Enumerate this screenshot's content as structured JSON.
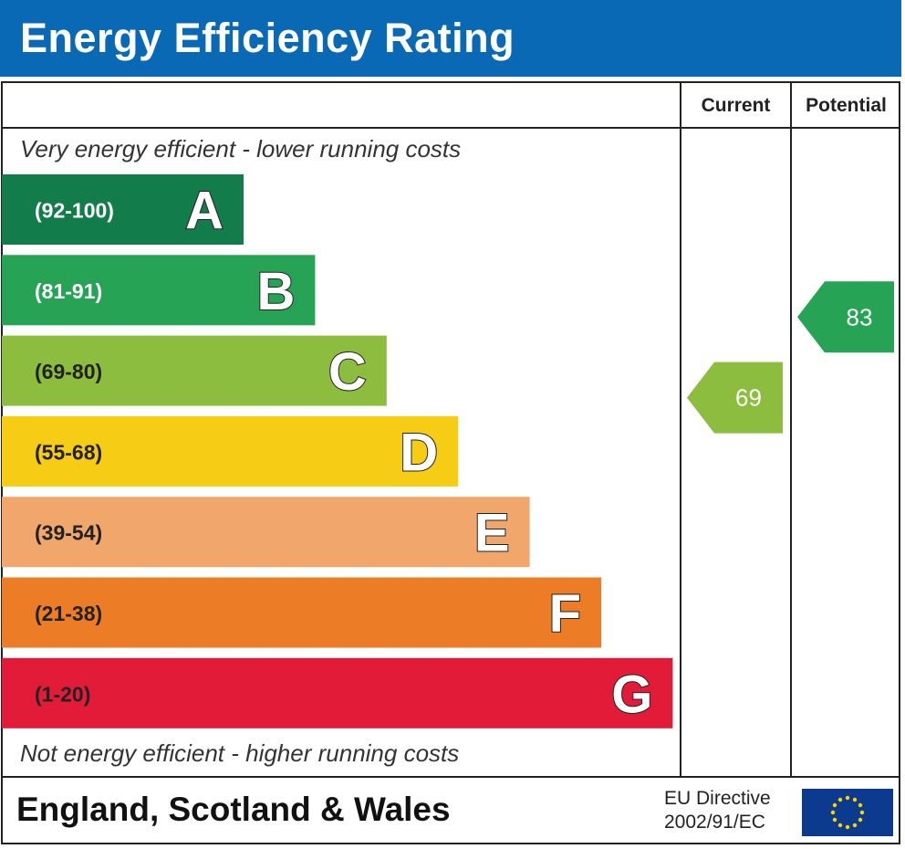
{
  "header": {
    "title": "Energy Efficiency Rating"
  },
  "columns": {
    "current": "Current",
    "potential": "Potential"
  },
  "notes": {
    "top": "Very energy efficient - lower running costs",
    "bottom": "Not energy efficient - higher running costs"
  },
  "footer": {
    "region": "England, Scotland & Wales",
    "directive_line1": "EU Directive",
    "directive_line2": "2002/91/EC"
  },
  "chart_data": {
    "type": "bar",
    "title": "Energy Efficiency Rating",
    "bands": [
      {
        "letter": "A",
        "range": "(92-100)",
        "min": 92,
        "max": 100,
        "color": "#137c4b"
      },
      {
        "letter": "B",
        "range": "(81-91)",
        "min": 81,
        "max": 91,
        "color": "#27a356"
      },
      {
        "letter": "C",
        "range": "(69-80)",
        "min": 69,
        "max": 80,
        "color": "#8dbd3e"
      },
      {
        "letter": "D",
        "range": "(55-68)",
        "min": 55,
        "max": 68,
        "color": "#f6cc15"
      },
      {
        "letter": "E",
        "range": "(39-54)",
        "min": 39,
        "max": 54,
        "color": "#f1a76c"
      },
      {
        "letter": "F",
        "range": "(21-38)",
        "min": 21,
        "max": 38,
        "color": "#ec7d26"
      },
      {
        "letter": "G",
        "range": "(1-20)",
        "min": 1,
        "max": 20,
        "color": "#e21c38"
      }
    ],
    "ratings": [
      {
        "column": "current",
        "value": 69,
        "band": "C",
        "color": "#8dbd3e"
      },
      {
        "column": "potential",
        "value": 83,
        "band": "B",
        "color": "#27a356"
      }
    ]
  }
}
